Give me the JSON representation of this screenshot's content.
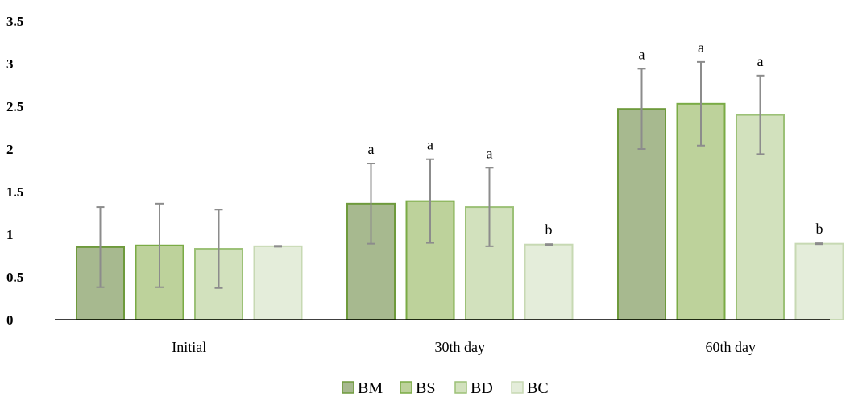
{
  "chart_data": {
    "type": "bar",
    "title": "",
    "xlabel": "",
    "ylabel": "",
    "ylim": [
      0,
      3.5
    ],
    "yticks": [
      "0",
      "0.5",
      "1",
      "1.5",
      "2",
      "2.5",
      "3",
      "3.5"
    ],
    "ytick_values": [
      0,
      0.5,
      1,
      1.5,
      2,
      2.5,
      3,
      3.5
    ],
    "grid": false,
    "legend_position": "bottom",
    "categories": [
      "Initial",
      "30th day",
      "60th day"
    ],
    "series": [
      {
        "name": "BM",
        "values": [
          0.85,
          1.36,
          2.47
        ],
        "errors": [
          0.47,
          0.47,
          0.47
        ],
        "labels": [
          "",
          "a",
          "a"
        ],
        "fill": "#a7b98f",
        "stroke": "#6e9a3c"
      },
      {
        "name": "BS",
        "values": [
          0.87,
          1.39,
          2.53
        ],
        "errors": [
          0.49,
          0.49,
          0.49
        ],
        "labels": [
          "",
          "a",
          "a"
        ],
        "fill": "#bdd29b",
        "stroke": "#7aab45"
      },
      {
        "name": "BD",
        "values": [
          0.83,
          1.32,
          2.4
        ],
        "errors": [
          0.46,
          0.46,
          0.46
        ],
        "labels": [
          "",
          "a",
          "a"
        ],
        "fill": "#d2e1bd",
        "stroke": "#9cc177"
      },
      {
        "name": "BC",
        "values": [
          0.86,
          0.88,
          0.89
        ],
        "errors": [
          0.005,
          0.005,
          0.005
        ],
        "labels": [
          "",
          "b",
          "b"
        ],
        "fill": "#e4edda",
        "stroke": "#c7d9b3"
      }
    ],
    "error_bar_color": "#8c8c8c",
    "axis_color": "#000000"
  }
}
